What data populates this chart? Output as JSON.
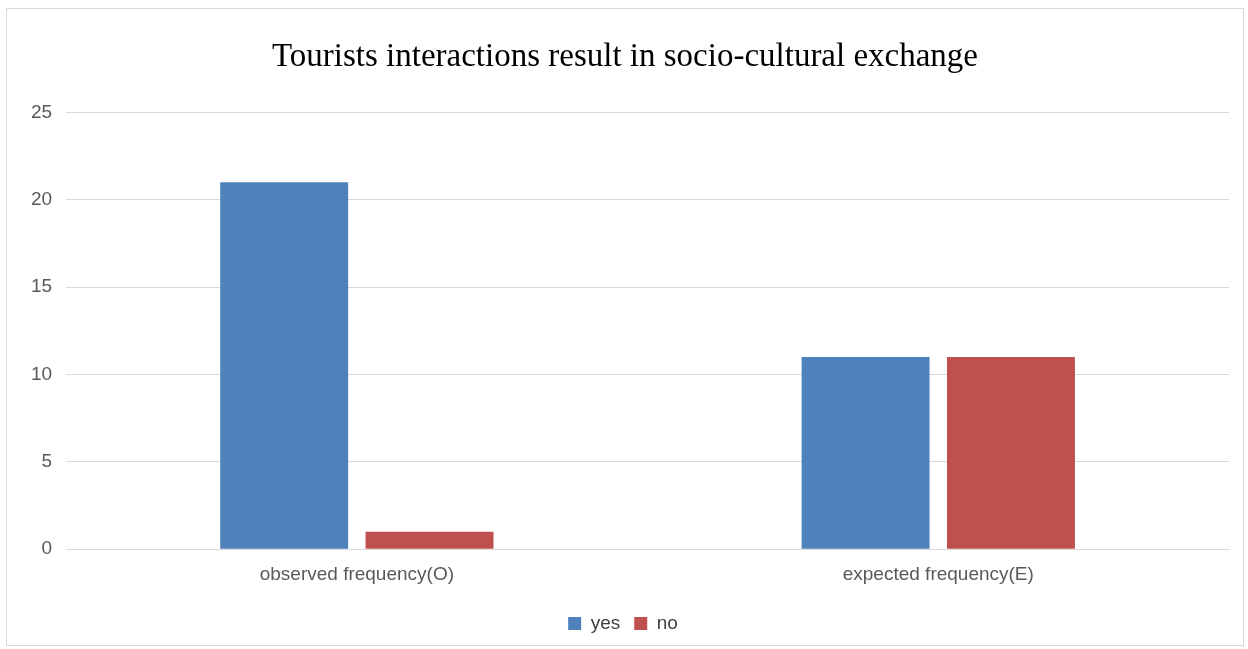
{
  "chart_data": {
    "type": "bar",
    "title": "Tourists interactions result in socio-cultural exchange",
    "categories": [
      "observed frequency(O)",
      "expected frequency(E)"
    ],
    "series": [
      {
        "name": "yes",
        "color": "#4f81bd",
        "values": [
          21,
          11
        ]
      },
      {
        "name": "no",
        "color": "#c0504d",
        "values": [
          1,
          11
        ]
      }
    ],
    "ylim": [
      0,
      25
    ],
    "yticks": [
      0,
      5,
      10,
      15,
      20,
      25
    ],
    "grid": "y",
    "legend": "bottom"
  }
}
